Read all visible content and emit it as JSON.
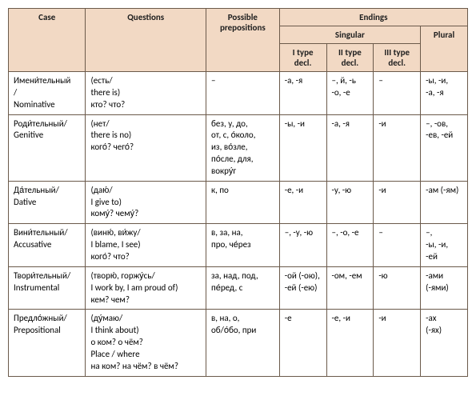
{
  "headers": {
    "case": "Case",
    "questions": "Questions",
    "prepositions": "Possible prepositions",
    "endings": "Endings",
    "singular": "Singular",
    "plural": "Plural",
    "type1": "I type decl.",
    "type2": "II type decl.",
    "type3": "III type decl."
  },
  "rows": [
    {
      "case": [
        "Имени́тельный",
        "/",
        "Nominative"
      ],
      "questions": [
        "(есть/",
        "there is)",
        "кто? что?"
      ],
      "prep": [
        "–"
      ],
      "t1": [
        "-а, -я"
      ],
      "t2": [
        "–, й, -ь",
        "-о, -е"
      ],
      "t3": [
        "–"
      ],
      "pl": [
        "-ы, -и,",
        "-а, -я"
      ]
    },
    {
      "case": [
        "Роди́тельный/",
        "Genitive"
      ],
      "questions": [
        "(нет/",
        "there is no)",
        "кого́? чего́?"
      ],
      "prep": [
        "без, у, до,",
        "от, с, о́коло,",
        "из, во́зле,",
        "по́сле, для,",
        "вокру́г"
      ],
      "t1": [
        "-ы, -и"
      ],
      "t2": [
        "-а, -я"
      ],
      "t3": [
        "-и"
      ],
      "pl": [
        "–, -ов,",
        "-ев, -ей"
      ]
    },
    {
      "case": [
        "Да́тельный/",
        "Dative"
      ],
      "questions": [
        "(даю́/",
        "I give to)",
        "кому́? чему́?"
      ],
      "prep": [
        "к, по"
      ],
      "t1": [
        "-е, -и"
      ],
      "t2": [
        "-у, -ю"
      ],
      "t3": [
        "-и"
      ],
      "pl": [
        "-ам (-ям)"
      ]
    },
    {
      "case": [
        "Вини́тельный/",
        "Accusative"
      ],
      "questions": [
        "(виню́, ви́жу/",
        "I blame, I see)",
        "кого́? что?"
      ],
      "prep": [
        "в, за, на,",
        "про, че́рез"
      ],
      "t1": [
        "–, -у, -ю"
      ],
      "t2": [
        "–, -о, -е"
      ],
      "t3": [
        "–"
      ],
      "pl": [
        "–,",
        "-ы, -и,",
        "-ей"
      ]
    },
    {
      "case": [
        "Твори́тельный/",
        "Instrumental"
      ],
      "questions": [
        "(творю́, горжу́сь/",
        "I work by, I am proud of)",
        "кем? чем?"
      ],
      "prep": [
        "за, над, под,",
        "пе́ред, с"
      ],
      "t1": [
        "-ой (-ою),",
        "-ей (-ею)"
      ],
      "t2": [
        "-ом, -ем"
      ],
      "t3": [
        "-ю"
      ],
      "pl": [
        "-ами",
        "(-ями)"
      ]
    },
    {
      "case": [
        "Предло́жный/",
        "Prepositional"
      ],
      "questions": [
        "(ду́маю/",
        "I think about)",
        "о ком? о чём?",
        "Place / where",
        "на ком? на чём? в чём?"
      ],
      "prep": [
        "в, на, о,",
        "об/о́бо, при"
      ],
      "t1": [
        "-е"
      ],
      "t2": [
        "-е, -и"
      ],
      "t3": [
        "-и"
      ],
      "pl": [
        "-ах",
        "(-ях)"
      ]
    }
  ]
}
